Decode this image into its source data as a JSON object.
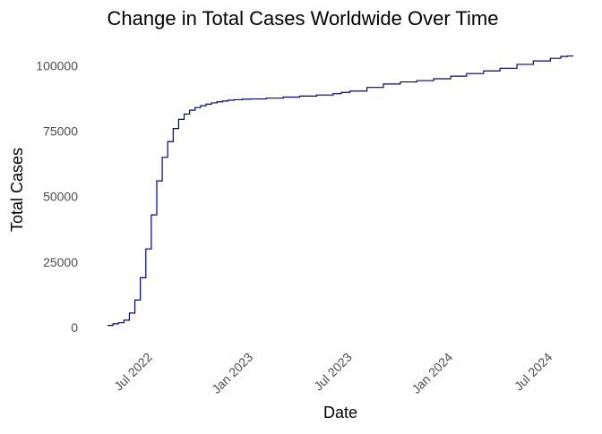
{
  "chart_data": {
    "type": "line",
    "title": "Change in Total Cases Worldwide Over Time",
    "xlabel": "Date",
    "ylabel": "Total Cases",
    "x_ticks": [
      {
        "date": "2022-07-01",
        "label": "Jul 2022"
      },
      {
        "date": "2023-01-01",
        "label": "Jan 2023"
      },
      {
        "date": "2023-07-01",
        "label": "Jul 2023"
      },
      {
        "date": "2024-01-01",
        "label": "Jan 2024"
      },
      {
        "date": "2024-07-01",
        "label": "Jul 2024"
      }
    ],
    "y_ticks": [
      {
        "value": 0,
        "label": "0"
      },
      {
        "value": 25000,
        "label": "25000"
      },
      {
        "value": 50000,
        "label": "50000"
      },
      {
        "value": 75000,
        "label": "75000"
      },
      {
        "value": 100000,
        "label": "100000"
      }
    ],
    "xlim": [
      "2022-05-15",
      "2024-09-12"
    ],
    "ylim": [
      -4800,
      108000
    ],
    "grid": false,
    "legend": "none",
    "line_color": "#00008b",
    "series": [
      {
        "x": [
          "2022-05-15",
          "2022-05-25",
          "2022-06-04",
          "2022-06-14",
          "2022-06-24",
          "2022-07-04",
          "2022-07-14",
          "2022-07-24",
          "2022-08-03",
          "2022-08-13",
          "2022-08-23",
          "2022-09-02",
          "2022-09-12",
          "2022-09-22",
          "2022-10-02",
          "2022-10-12",
          "2022-10-22",
          "2022-11-01",
          "2022-11-11",
          "2022-11-21",
          "2022-12-01",
          "2022-12-11",
          "2022-12-21",
          "2023-01-01",
          "2023-01-16",
          "2023-02-01",
          "2023-03-01",
          "2023-04-01",
          "2023-05-01",
          "2023-06-01",
          "2023-07-01",
          "2023-07-16",
          "2023-08-01",
          "2023-09-01",
          "2023-10-01",
          "2023-11-01",
          "2023-12-01",
          "2024-01-01",
          "2024-02-01",
          "2024-03-01",
          "2024-04-01",
          "2024-05-01",
          "2024-06-01",
          "2024-07-01",
          "2024-08-01",
          "2024-08-20",
          "2024-09-01",
          "2024-09-12"
        ],
        "y": [
          800,
          1400,
          1800,
          2800,
          5500,
          10500,
          19000,
          30000,
          43000,
          56000,
          65000,
          71000,
          76000,
          79500,
          81500,
          83000,
          84000,
          84700,
          85300,
          85800,
          86200,
          86500,
          86800,
          87000,
          87200,
          87300,
          87600,
          88000,
          88400,
          88800,
          89300,
          89800,
          90300,
          91700,
          93000,
          93800,
          94300,
          95000,
          96000,
          97000,
          98000,
          99000,
          100500,
          101800,
          102800,
          103500,
          103700,
          103700
        ]
      }
    ]
  }
}
